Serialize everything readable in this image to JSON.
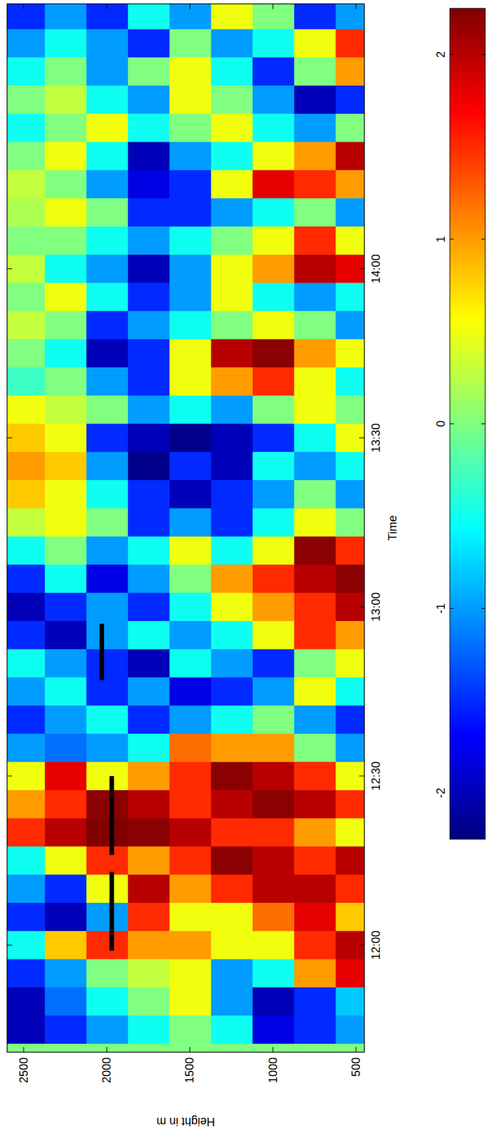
{
  "chart_data": {
    "type": "heatmap",
    "x_label": "Time",
    "y_label": "Height in m",
    "x": [
      705,
      710,
      715,
      720,
      725,
      730,
      735,
      740,
      745,
      750,
      755,
      760,
      765,
      770,
      775,
      780,
      785,
      790,
      795,
      800,
      805,
      810,
      815,
      820,
      825,
      830,
      835,
      840,
      845,
      850,
      855,
      860,
      865,
      870,
      875,
      880,
      885
    ],
    "y": [
      500,
      750,
      1000,
      1250,
      1500,
      1750,
      2000,
      2250,
      2500
    ],
    "z": [
      [
        -1,
        -1.5,
        -1.8,
        -0.5,
        0,
        -0.5,
        -1,
        -1.5,
        -2
      ],
      [
        -0.8,
        -1.5,
        -2,
        -1,
        0.5,
        0,
        -0.5,
        -1.2,
        -2
      ],
      [
        1.8,
        1,
        -0.5,
        -1,
        0.5,
        0.3,
        0,
        -1,
        -1.5
      ],
      [
        2,
        1.5,
        0.5,
        0.5,
        1,
        1,
        1.5,
        0.8,
        -0.5
      ],
      [
        0.8,
        1.8,
        1.2,
        0.5,
        0.5,
        1.5,
        -1,
        -2,
        -1.5
      ],
      [
        1.5,
        2,
        2,
        1.5,
        1,
        2,
        0.5,
        -1.5,
        -1
      ],
      [
        2,
        1.5,
        2,
        2.2,
        1.5,
        1,
        1.5,
        0.5,
        -0.5
      ],
      [
        0.5,
        1,
        1.5,
        1.5,
        2,
        2.2,
        2.3,
        2,
        1.5
      ],
      [
        1.5,
        2,
        2.2,
        2,
        1.5,
        2,
        2.2,
        1.5,
        1
      ],
      [
        0.5,
        1.5,
        2,
        2.2,
        1.5,
        1,
        0.5,
        1.8,
        0.5
      ],
      [
        -1,
        0,
        1,
        1,
        1.2,
        -0.5,
        -1,
        -1.2,
        -1
      ],
      [
        -1.5,
        -1,
        0,
        -0.5,
        -1,
        -1.5,
        -0.5,
        -1,
        -1.5
      ],
      [
        -0.5,
        0.5,
        -1,
        -1.5,
        -1.8,
        -1,
        -1.5,
        -0.5,
        -1
      ],
      [
        0.5,
        0,
        -1.5,
        -1,
        -0.5,
        -2,
        -1.5,
        -1,
        -0.5
      ],
      [
        1,
        1.5,
        0.5,
        -0.5,
        -1,
        -0.5,
        -1,
        -2,
        -1.5
      ],
      [
        2,
        1.5,
        1,
        0.5,
        -0.5,
        -1.5,
        -1,
        -1.5,
        -2
      ],
      [
        2.2,
        2,
        1.5,
        1,
        0,
        -1,
        -1.8,
        -0.5,
        -1.5
      ],
      [
        1.5,
        2.2,
        0.5,
        -0.5,
        0.5,
        -0.5,
        -1,
        0,
        -0.5
      ],
      [
        0,
        0.5,
        -0.5,
        -1.5,
        -1,
        -1.5,
        0,
        0.5,
        0.3
      ],
      [
        -1,
        0,
        -1,
        -1.5,
        -2,
        -1.5,
        -0.5,
        0.5,
        0.8
      ],
      [
        -0.5,
        -1,
        -0.5,
        -2,
        -1.5,
        -2.2,
        -1,
        0.8,
        1
      ],
      [
        0.5,
        -0.5,
        -1.5,
        -2,
        -2.2,
        -2,
        -1.5,
        0.5,
        0.8
      ],
      [
        0,
        0.5,
        0,
        -1,
        -0.5,
        -1,
        0,
        0.3,
        0.5
      ],
      [
        -0.5,
        0.5,
        1.5,
        1,
        0.5,
        -1.5,
        -1,
        0,
        -0.3
      ],
      [
        0.5,
        1,
        2.2,
        2,
        0.5,
        -1.5,
        -2,
        -0.5,
        0
      ],
      [
        -1,
        0,
        0.5,
        0,
        -0.5,
        -1,
        -1.5,
        0,
        0.3
      ],
      [
        -0.5,
        -1,
        -0.5,
        0.5,
        -1,
        -1.5,
        -0.5,
        0.5,
        0
      ],
      [
        1.8,
        2,
        1,
        0.5,
        -1,
        -2,
        -1,
        -0.5,
        0.3
      ],
      [
        0.5,
        1.5,
        0.5,
        0,
        -0.5,
        -1,
        -0.5,
        0,
        0
      ],
      [
        -1,
        0,
        -0.5,
        -1,
        -1.5,
        -1.5,
        0,
        0.5,
        0.2
      ],
      [
        1,
        1.5,
        1.8,
        0.5,
        -1.5,
        -1.8,
        -1,
        0,
        0.3
      ],
      [
        2,
        1,
        0.5,
        -0.5,
        -1,
        -2,
        -0.5,
        0.5,
        0
      ],
      [
        0,
        -1,
        -0.5,
        0.5,
        0,
        -0.5,
        0.5,
        0,
        -0.5
      ],
      [
        -1.5,
        -2,
        -1,
        0,
        0.5,
        -1,
        -0.5,
        0.3,
        0
      ],
      [
        1,
        0,
        -1.5,
        -0.5,
        0.5,
        0,
        -1,
        0,
        -0.5
      ],
      [
        1.5,
        0.5,
        -0.5,
        -1,
        0,
        -1.5,
        -1,
        -0.5,
        -1
      ],
      [
        -1,
        -1.5,
        0,
        0.5,
        -1,
        -0.5,
        -1.5,
        -1,
        -1.5
      ]
    ],
    "xlim": [
      701,
      887
    ],
    "ylim": [
      450,
      2600
    ],
    "xticks": [
      {
        "value": 720,
        "label": "12:00"
      },
      {
        "value": 750,
        "label": "12:30"
      },
      {
        "value": 780,
        "label": "13:00"
      },
      {
        "value": 810,
        "label": "13:30"
      },
      {
        "value": 840,
        "label": "14:00"
      }
    ],
    "yticks": [
      500,
      1000,
      1500,
      2000,
      2500
    ],
    "colorbar": {
      "range": [
        -2.25,
        2.25
      ],
      "ticks": [
        -2,
        -1,
        0,
        1,
        2
      ]
    },
    "segments": [
      {
        "x": [
          719,
          733
        ],
        "y": 1970
      },
      {
        "x": [
          736,
          750
        ],
        "y": 1970
      },
      {
        "x": [
          767,
          777
        ],
        "y": 2030
      }
    ]
  }
}
